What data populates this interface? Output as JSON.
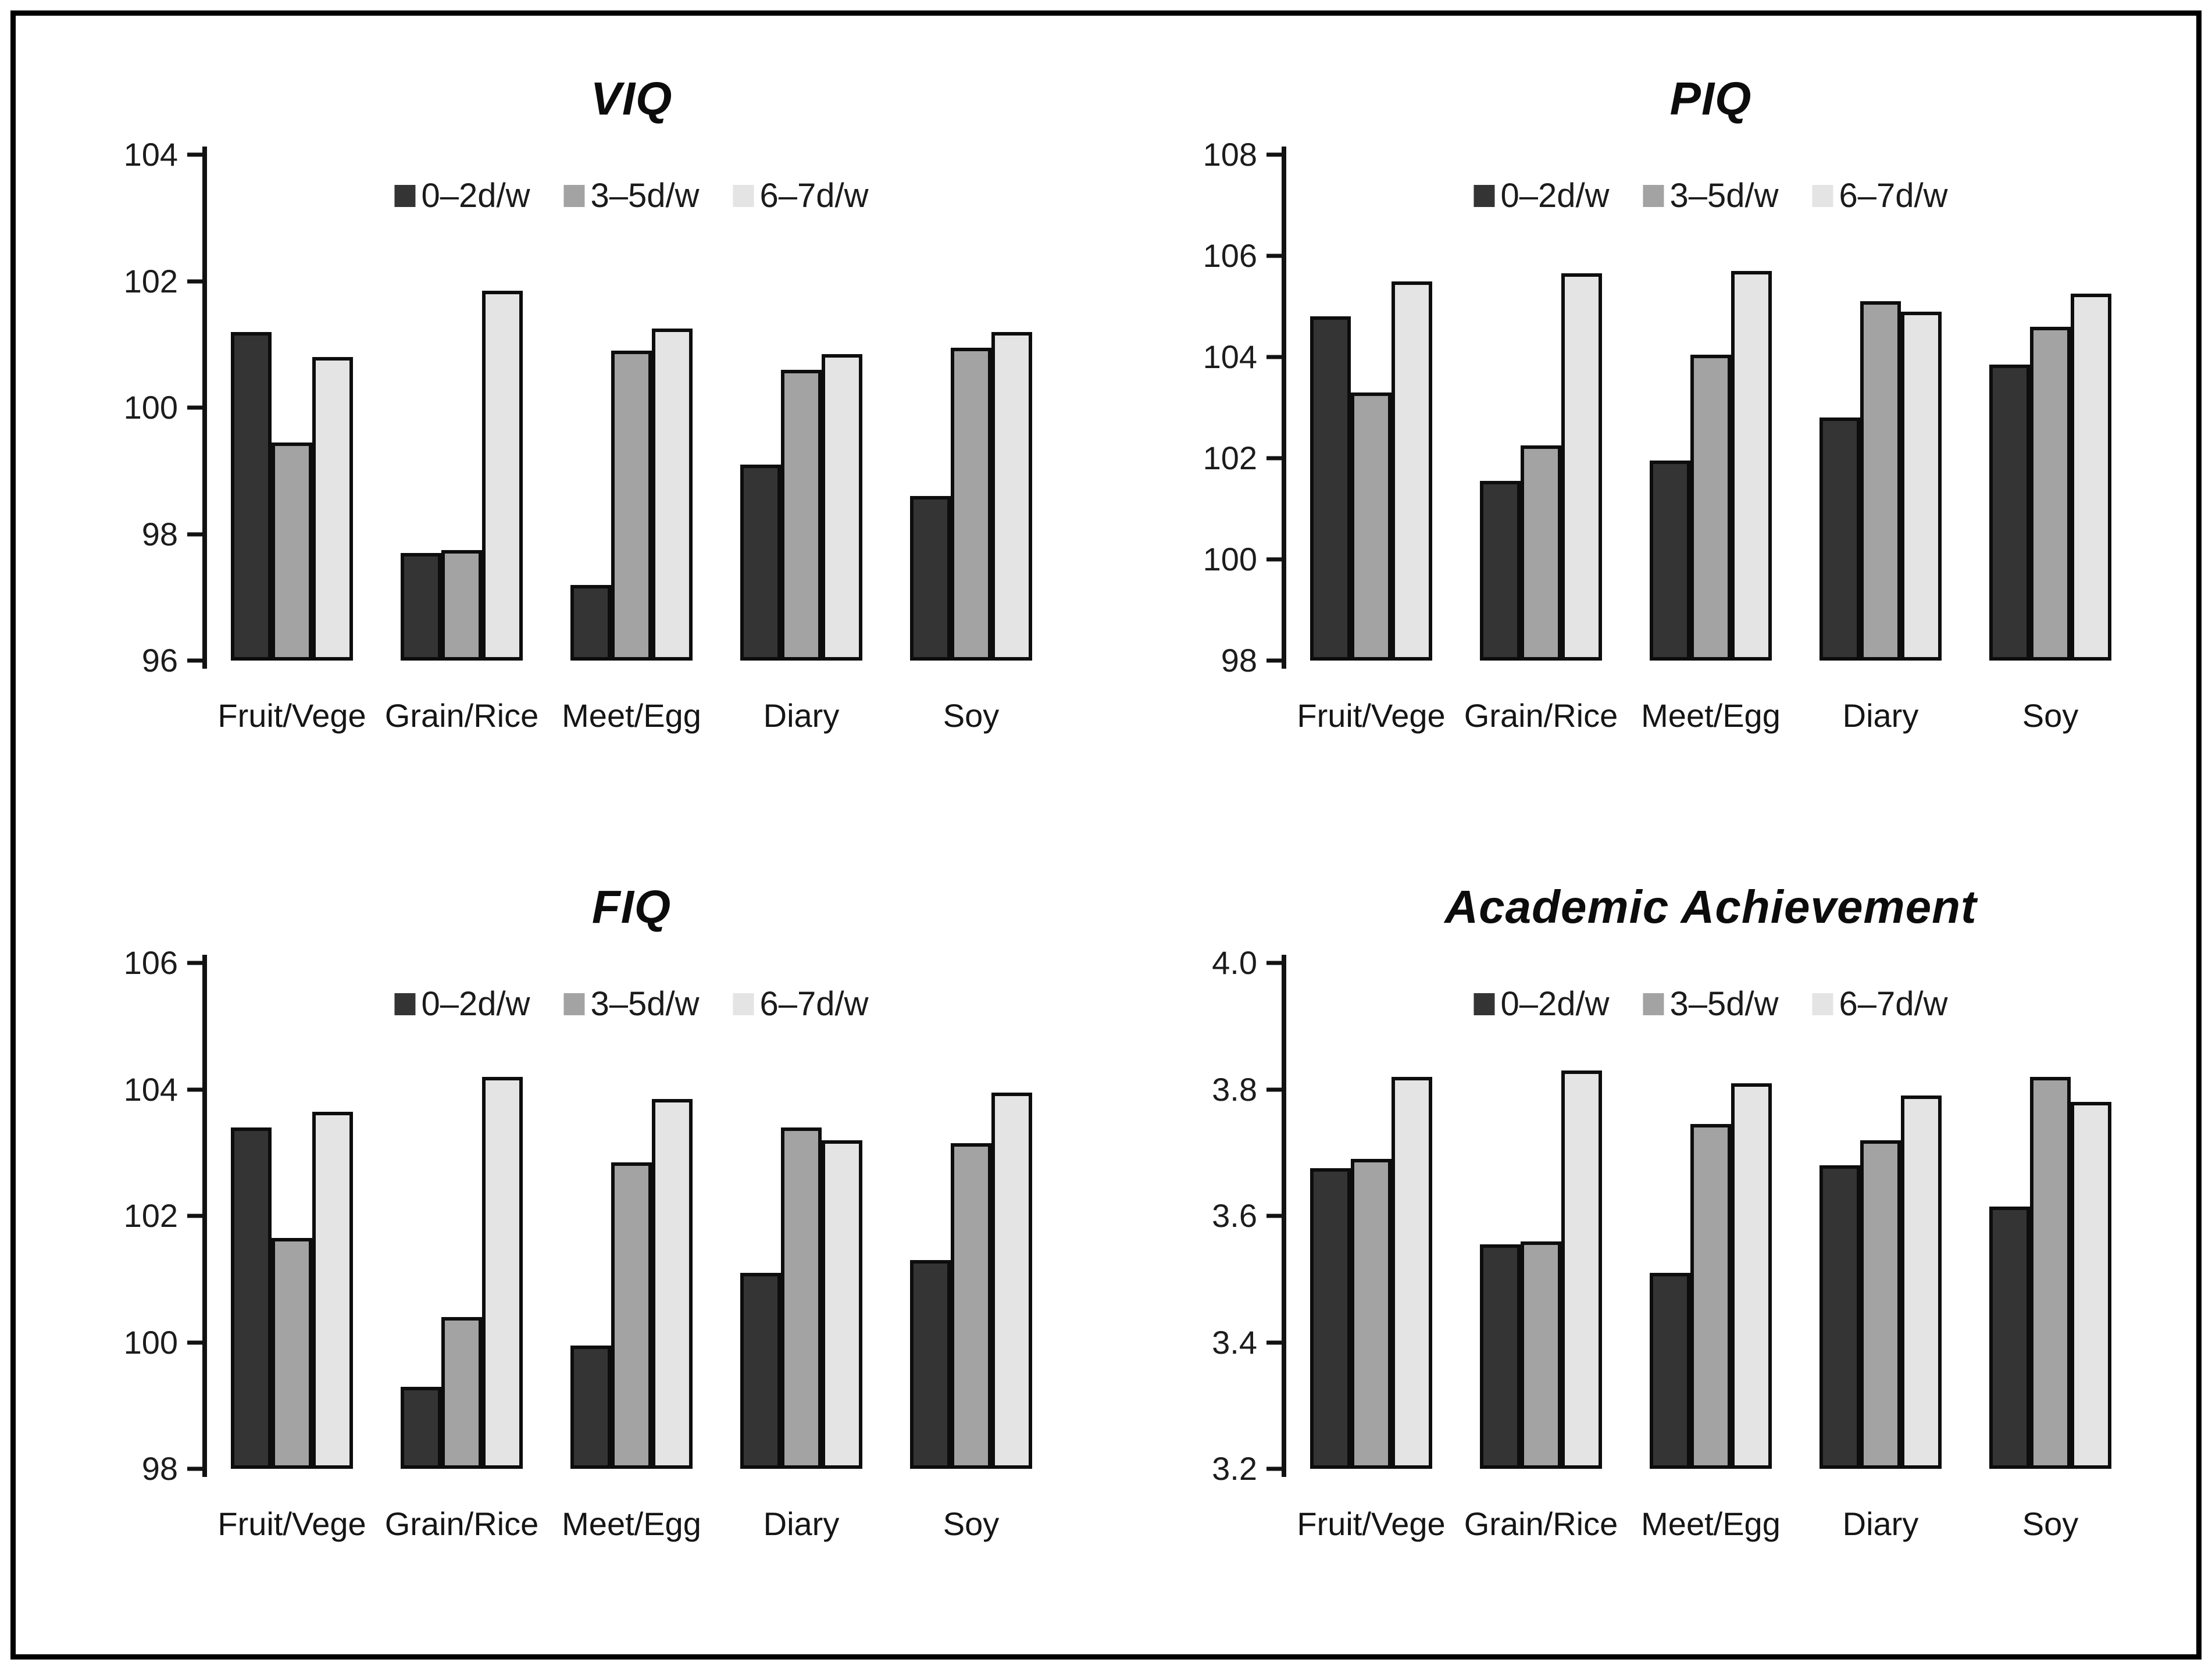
{
  "figure": {
    "background": "#ffffff",
    "frame_color": "#000000"
  },
  "legend": {
    "items": [
      {
        "label": "0–2d/w",
        "color": "#343434"
      },
      {
        "label": "3–5d/w",
        "color": "#a3a3a3"
      },
      {
        "label": "6–7d/w",
        "color": "#e4e4e4"
      }
    ]
  },
  "chart_data": [
    {
      "type": "bar",
      "title": "VIQ",
      "categories": [
        "Fruit/Vege",
        "Grain/Rice",
        "Meet/Egg",
        "Diary",
        "Soy"
      ],
      "series": [
        {
          "name": "0–2d/w",
          "values": [
            101.2,
            97.7,
            97.2,
            99.1,
            98.6
          ]
        },
        {
          "name": "3–5d/w",
          "values": [
            99.45,
            97.75,
            100.9,
            100.6,
            100.95
          ]
        },
        {
          "name": "6–7d/w",
          "values": [
            100.8,
            101.85,
            101.25,
            100.85,
            101.2
          ]
        }
      ],
      "xlabel": "",
      "ylabel": "",
      "ylim": [
        96,
        104
      ],
      "ytick_step": 2,
      "ytick_decimals": 0,
      "grid": false,
      "legend_position": "top-center",
      "bar_edge_color": "#0d0d0d"
    },
    {
      "type": "bar",
      "title": "PIQ",
      "categories": [
        "Fruit/Vege",
        "Grain/Rice",
        "Meet/Egg",
        "Diary",
        "Soy"
      ],
      "series": [
        {
          "name": "0–2d/w",
          "values": [
            104.8,
            101.55,
            101.95,
            102.8,
            103.85
          ]
        },
        {
          "name": "3–5d/w",
          "values": [
            103.3,
            102.25,
            104.05,
            105.1,
            104.6
          ]
        },
        {
          "name": "6–7d/w",
          "values": [
            105.5,
            105.65,
            105.7,
            104.9,
            105.25
          ]
        }
      ],
      "xlabel": "",
      "ylabel": "",
      "ylim": [
        98,
        108
      ],
      "ytick_step": 2,
      "ytick_decimals": 0,
      "grid": false,
      "legend_position": "top-center",
      "bar_edge_color": "#0d0d0d"
    },
    {
      "type": "bar",
      "title": "FIQ",
      "categories": [
        "Fruit/Vege",
        "Grain/Rice",
        "Meet/Egg",
        "Diary",
        "Soy"
      ],
      "series": [
        {
          "name": "0–2d/w",
          "values": [
            103.4,
            99.3,
            99.95,
            101.1,
            101.3
          ]
        },
        {
          "name": "3–5d/w",
          "values": [
            101.65,
            100.4,
            102.85,
            103.4,
            103.15
          ]
        },
        {
          "name": "6–7d/w",
          "values": [
            103.65,
            104.2,
            103.85,
            103.2,
            103.95
          ]
        }
      ],
      "xlabel": "",
      "ylabel": "",
      "ylim": [
        98,
        106
      ],
      "ytick_step": 2,
      "ytick_decimals": 0,
      "grid": false,
      "legend_position": "top-center",
      "bar_edge_color": "#0d0d0d"
    },
    {
      "type": "bar",
      "title": "Academic Achievement",
      "categories": [
        "Fruit/Vege",
        "Grain/Rice",
        "Meet/Egg",
        "Diary",
        "Soy"
      ],
      "series": [
        {
          "name": "0–2d/w",
          "values": [
            3.675,
            3.555,
            3.51,
            3.68,
            3.615
          ]
        },
        {
          "name": "3–5d/w",
          "values": [
            3.69,
            3.56,
            3.745,
            3.72,
            3.82
          ]
        },
        {
          "name": "6–7d/w",
          "values": [
            3.82,
            3.83,
            3.81,
            3.79,
            3.78
          ]
        }
      ],
      "xlabel": "",
      "ylabel": "",
      "ylim": [
        3.2,
        4.0
      ],
      "ytick_step": 0.2,
      "ytick_decimals": 1,
      "grid": false,
      "legend_position": "top-center",
      "bar_edge_color": "#0d0d0d"
    }
  ]
}
